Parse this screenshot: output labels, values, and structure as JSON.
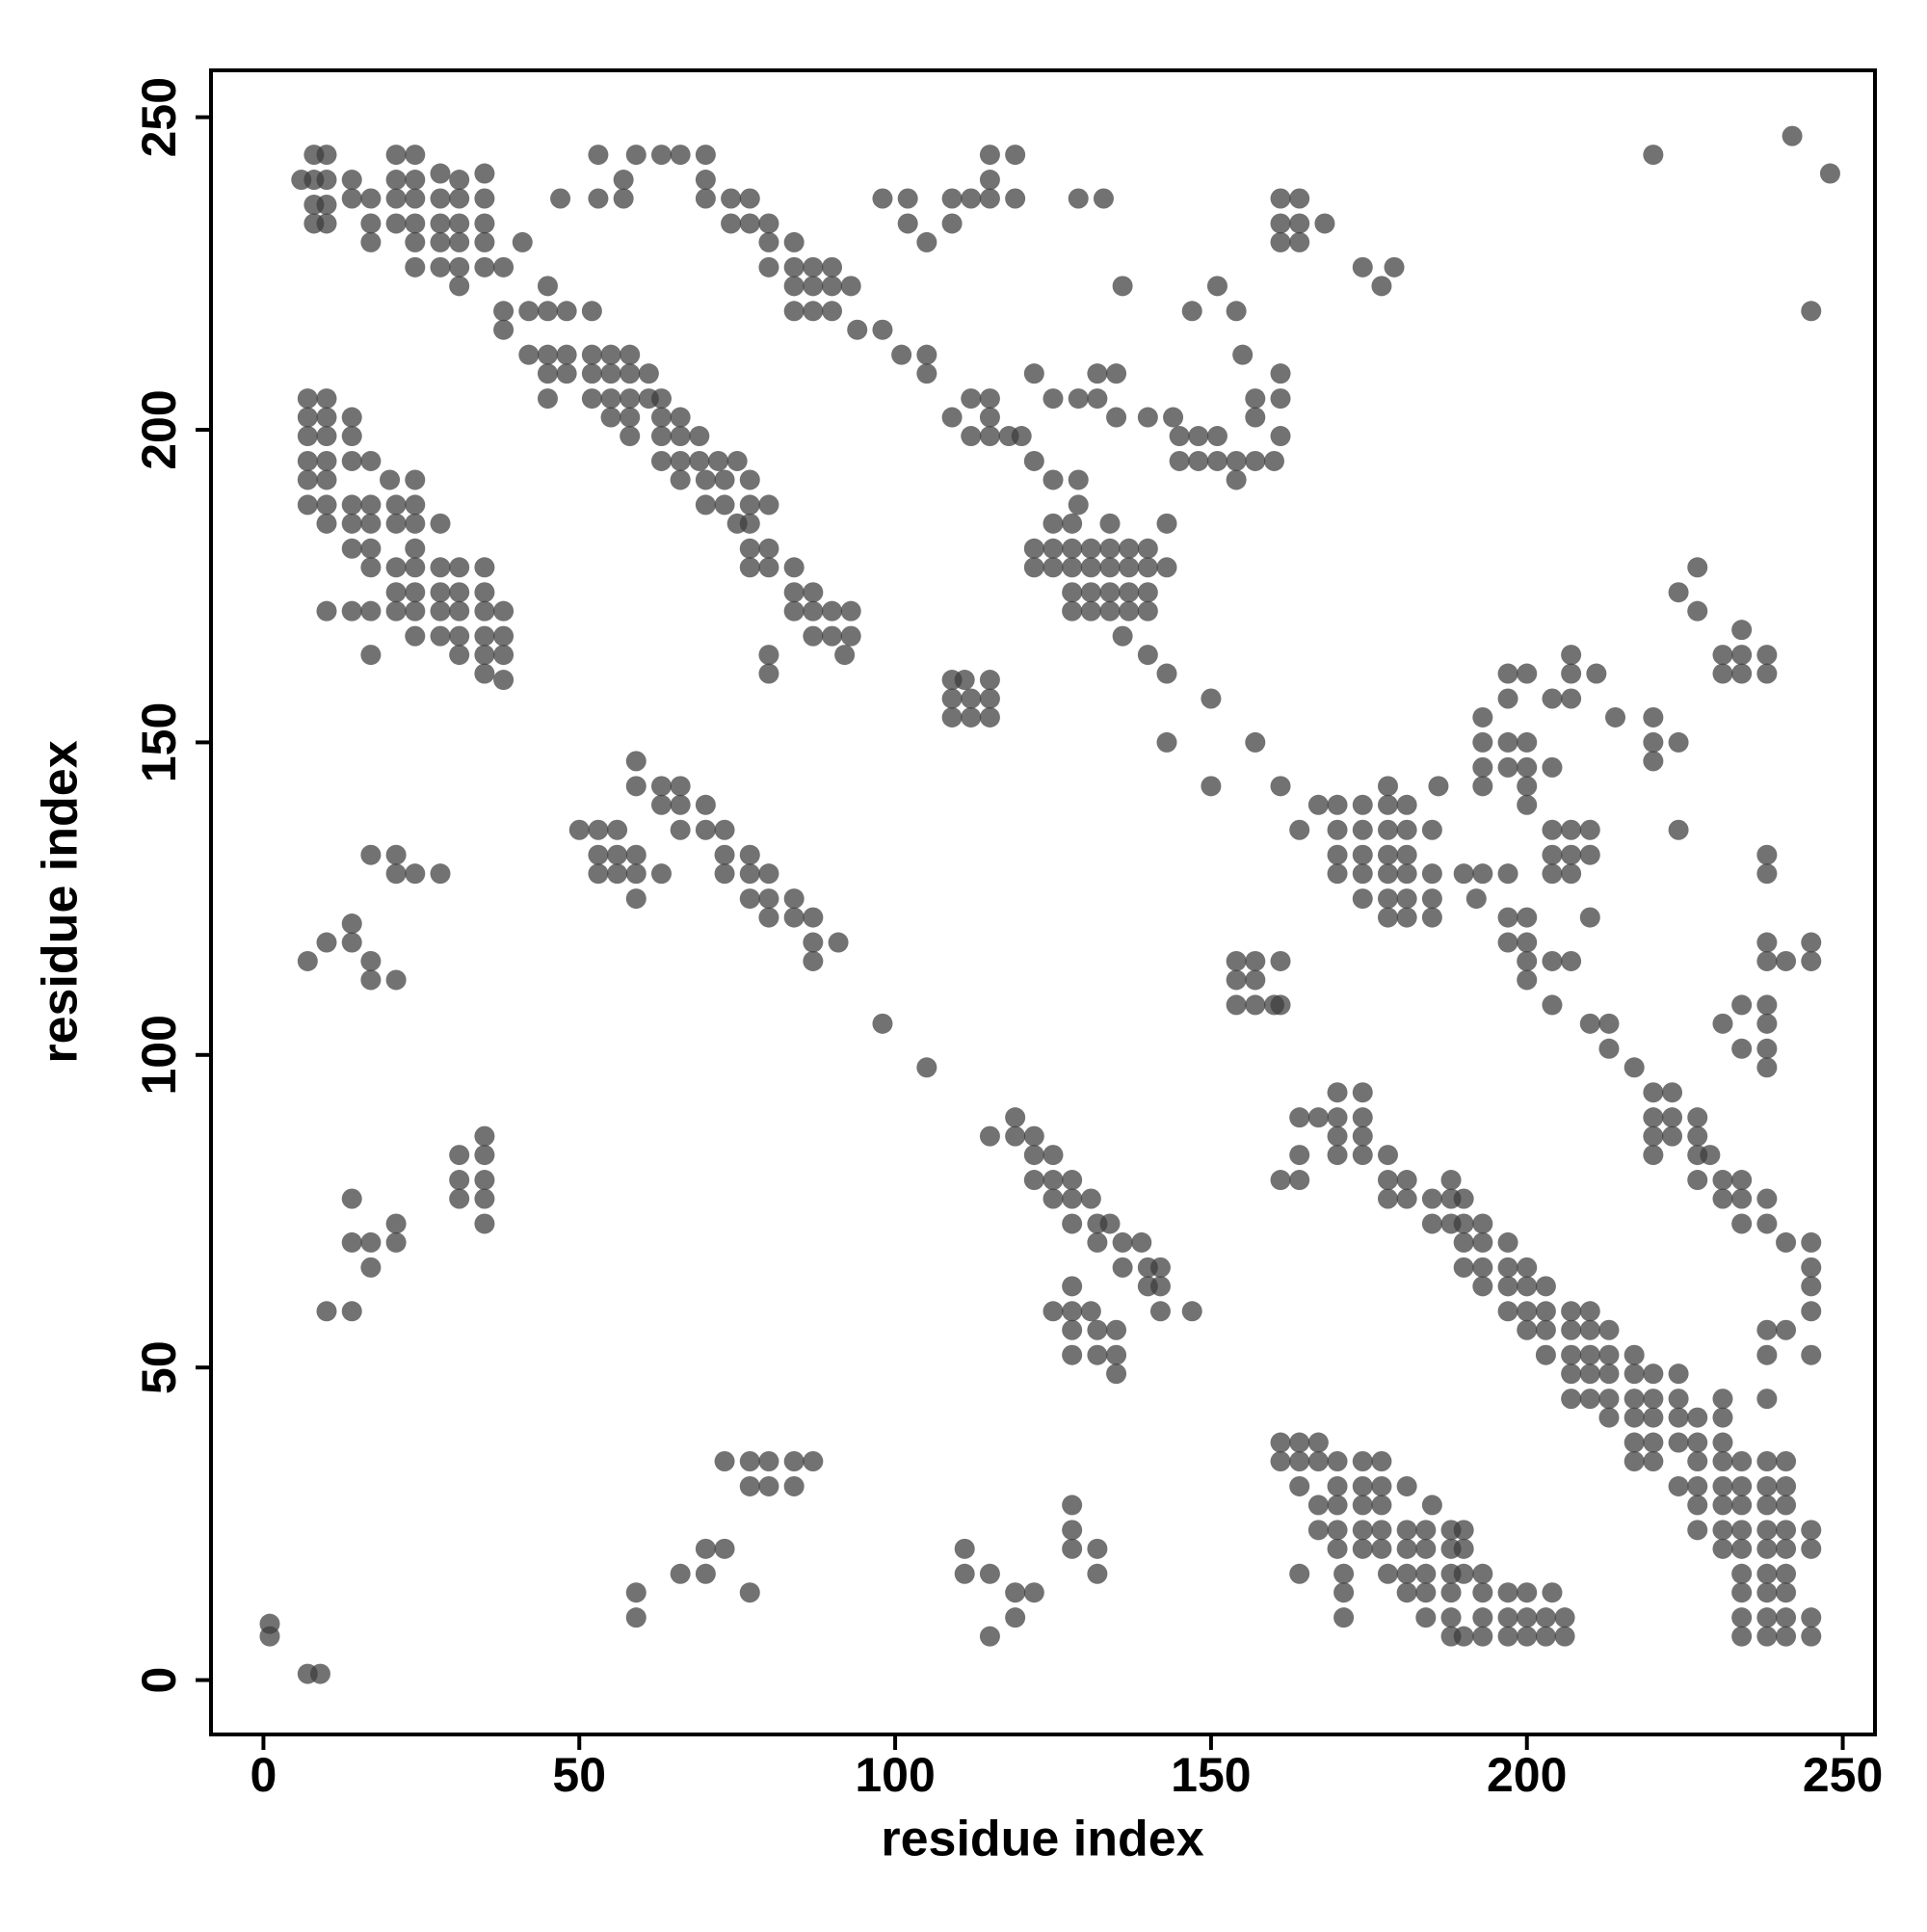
{
  "chart_data": {
    "type": "scatter",
    "x_label": "residue index",
    "y_label": "residue index",
    "xlim": [
      -8.3,
      255.1
    ],
    "ylim": [
      -8.7,
      257.5
    ],
    "xticks": [
      0,
      50,
      100,
      150,
      200,
      250
    ],
    "yticks": [
      0,
      50,
      100,
      150,
      200,
      250
    ],
    "color": "#3c3c3c",
    "marker_alpha": 0.72,
    "x": [
      6,
      8,
      10,
      8,
      10,
      8,
      10,
      8,
      10,
      14,
      14,
      17,
      17,
      17,
      21,
      24,
      21,
      24,
      21,
      24,
      21,
      24,
      24,
      28,
      31,
      28,
      31,
      35,
      35,
      28,
      31,
      35,
      28,
      31,
      35,
      24,
      28,
      31,
      35,
      38,
      31,
      41,
      38,
      38,
      42,
      45,
      45,
      48,
      52,
      42,
      45,
      48,
      52,
      55,
      58,
      45,
      48,
      52,
      55,
      58,
      61,
      45,
      52,
      55,
      58,
      61,
      63,
      55,
      58,
      63,
      66,
      58,
      63,
      66,
      69,
      63,
      66,
      69,
      72,
      75,
      66,
      70,
      73,
      77,
      70,
      73,
      77,
      80,
      75,
      77,
      77,
      80,
      77,
      80,
      84,
      84,
      87,
      84,
      87,
      90,
      93,
      87,
      90,
      93,
      80,
      92,
      80,
      53,
      59,
      63,
      66,
      70,
      53,
      57,
      57,
      70,
      70,
      74,
      77,
      74,
      77,
      80,
      80,
      84,
      80,
      84,
      87,
      90,
      84,
      87,
      90,
      93,
      84,
      87,
      90,
      94,
      98,
      101,
      105,
      105,
      98,
      102,
      102,
      105,
      109,
      109,
      112,
      115,
      115,
      115,
      119,
      119,
      47,
      7,
      10,
      7,
      10,
      14,
      7,
      10,
      14,
      7,
      10,
      14,
      17,
      7,
      10,
      7,
      10,
      14,
      17,
      10,
      14,
      17,
      14,
      17,
      20,
      24,
      21,
      24,
      21,
      24,
      28,
      24,
      17,
      21,
      24,
      28,
      31,
      35,
      21,
      24,
      28,
      31,
      35,
      21,
      24,
      28,
      31,
      35,
      38,
      24,
      28,
      31,
      35,
      38,
      31,
      35,
      38,
      35,
      38,
      10,
      14,
      17,
      17,
      122,
      122,
      125,
      128,
      131,
      134,
      137,
      140,
      143,
      125,
      128,
      125,
      128,
      131,
      134,
      137,
      140,
      128,
      131,
      134,
      137,
      140,
      128,
      131,
      134,
      137,
      140,
      134,
      143,
      136,
      140,
      143,
      125,
      129,
      129,
      118,
      120,
      122,
      115,
      112,
      109,
      112,
      115,
      115,
      122,
      125,
      129,
      132,
      132,
      135,
      135,
      140,
      144,
      145,
      148,
      151,
      145,
      148,
      151,
      154,
      157,
      160,
      154,
      157,
      157,
      161,
      161,
      161,
      155,
      147,
      151,
      154,
      136,
      129,
      133,
      161,
      164,
      161,
      164,
      168,
      161,
      164,
      174,
      179,
      177,
      143,
      150,
      157,
      150,
      109,
      111,
      109,
      112,
      115,
      109,
      112,
      115,
      115,
      7,
      10,
      14,
      14,
      17,
      17,
      21,
      17,
      21,
      21,
      24,
      28,
      31,
      31,
      31,
      35,
      35,
      35,
      35,
      35,
      14,
      14,
      17,
      17,
      21,
      21,
      10,
      14,
      1,
      1,
      7,
      9,
      59,
      59,
      63,
      66,
      63,
      66,
      70,
      66,
      70,
      73,
      50,
      53,
      56,
      53,
      56,
      59,
      73,
      77,
      53,
      56,
      59,
      59,
      63,
      73,
      77,
      80,
      77,
      80,
      84,
      80,
      84,
      87,
      87,
      91,
      87,
      98,
      105,
      73,
      77,
      80,
      84,
      87,
      77,
      80,
      84,
      70,
      73,
      70,
      66,
      77,
      59,
      59,
      115,
      119,
      119,
      122,
      122,
      125,
      122,
      125,
      128,
      125,
      128,
      131,
      128,
      132,
      134,
      132,
      136,
      139,
      136,
      140,
      142,
      140,
      142,
      142,
      147,
      125,
      128,
      131,
      128,
      132,
      135,
      128,
      132,
      135,
      135,
      128,
      128,
      128,
      128,
      132,
      132,
      111,
      111,
      115,
      115,
      119,
      122,
      119,
      154,
      154,
      157,
      161,
      154,
      157,
      160,
      161,
      157,
      167,
      170,
      174,
      178,
      181,
      164,
      170,
      174,
      178,
      181,
      185,
      170,
      174,
      178,
      181,
      170,
      174,
      178,
      181,
      185,
      174,
      178,
      181,
      185,
      178,
      181,
      185,
      178,
      186,
      161,
      190,
      193,
      197,
      192,
      197,
      200,
      200,
      197,
      200,
      200,
      204,
      207,
      204,
      210,
      213,
      213,
      217,
      220,
      223,
      220,
      223,
      227,
      220,
      223,
      227,
      220,
      227,
      229,
      227,
      231,
      234,
      231,
      234,
      238,
      234,
      238,
      241,
      245,
      245,
      245,
      245,
      245,
      238,
      241,
      238,
      238,
      193,
      197,
      197,
      200,
      193,
      197,
      200,
      193,
      197,
      200,
      204,
      200,
      200,
      193,
      204,
      207,
      204,
      207,
      210,
      207,
      204,
      210,
      210,
      204,
      207,
      207,
      207,
      211,
      214,
      220,
      220,
      220,
      224,
      224,
      231,
      234,
      238,
      231,
      234,
      238,
      234,
      224,
      227,
      227,
      238,
      238,
      238,
      238,
      241,
      245,
      245,
      234,
      238,
      231,
      238,
      234,
      238,
      238,
      220,
      242,
      248,
      245,
      170,
      174,
      170,
      167,
      174,
      170,
      174,
      164,
      164,
      161,
      164,
      170,
      174,
      178,
      178,
      181,
      178,
      181,
      185,
      188,
      185,
      188,
      190,
      188,
      190,
      193,
      190,
      193,
      197,
      190,
      193,
      197,
      200,
      193,
      197,
      200,
      203,
      197,
      200,
      203,
      207,
      210,
      200,
      203,
      207,
      210,
      213,
      203,
      207,
      210,
      213,
      217,
      207,
      210,
      213,
      217,
      220,
      207,
      210,
      213,
      217,
      220,
      224,
      213,
      217,
      220,
      224,
      227,
      217,
      220,
      224,
      227,
      231,
      217,
      220,
      227,
      231,
      234,
      238,
      241,
      224,
      227,
      231,
      234,
      238,
      241,
      227,
      231,
      234,
      238,
      241,
      227,
      231,
      234,
      238,
      241,
      245,
      231,
      234,
      238,
      241,
      245,
      234,
      238,
      241,
      234,
      238,
      241,
      234,
      238,
      241,
      245,
      234,
      238,
      241,
      245,
      224,
      231,
      231,
      161,
      164,
      167,
      161,
      164,
      167,
      170,
      174,
      177,
      164,
      170,
      174,
      177,
      181,
      167,
      170,
      174,
      177,
      167,
      170,
      174,
      177,
      181,
      184,
      188,
      190,
      170,
      174,
      177,
      181,
      184,
      188,
      190,
      178,
      181,
      184,
      188,
      190,
      181,
      184,
      188,
      193,
      197,
      200,
      184,
      188,
      193,
      197,
      200,
      203,
      206,
      188,
      190,
      193,
      197,
      200,
      203,
      206,
      185,
      164,
      171,
      171,
      171,
      193,
      204
    ],
    "y": [
      240,
      244,
      244,
      240,
      240,
      236,
      236,
      233,
      233,
      240,
      237,
      237,
      233,
      230,
      244,
      244,
      240,
      240,
      237,
      237,
      233,
      233,
      230,
      241,
      240,
      237,
      237,
      241,
      237,
      233,
      233,
      233,
      230,
      230,
      230,
      226,
      226,
      226,
      226,
      226,
      223,
      230,
      219,
      216,
      219,
      223,
      219,
      219,
      219,
      212,
      212,
      212,
      212,
      212,
      212,
      209,
      209,
      209,
      209,
      209,
      209,
      205,
      205,
      205,
      205,
      205,
      205,
      202,
      202,
      202,
      202,
      199,
      199,
      199,
      199,
      195,
      195,
      195,
      195,
      195,
      192,
      192,
      192,
      192,
      188,
      188,
      188,
      188,
      185,
      185,
      181,
      181,
      178,
      178,
      178,
      174,
      174,
      171,
      171,
      171,
      171,
      167,
      167,
      167,
      164,
      164,
      161,
      244,
      244,
      244,
      244,
      244,
      237,
      240,
      237,
      240,
      237,
      237,
      237,
      233,
      233,
      233,
      230,
      230,
      226,
      226,
      226,
      226,
      223,
      223,
      223,
      223,
      219,
      219,
      219,
      216,
      216,
      212,
      212,
      209,
      237,
      237,
      233,
      230,
      237,
      233,
      237,
      237,
      240,
      244,
      244,
      237,
      237,
      205,
      205,
      202,
      202,
      202,
      199,
      199,
      199,
      195,
      195,
      195,
      195,
      192,
      192,
      188,
      188,
      188,
      188,
      185,
      185,
      185,
      181,
      181,
      192,
      192,
      188,
      188,
      185,
      185,
      185,
      181,
      178,
      178,
      178,
      178,
      178,
      178,
      174,
      174,
      174,
      174,
      174,
      171,
      171,
      171,
      171,
      171,
      171,
      167,
      167,
      167,
      167,
      167,
      164,
      164,
      164,
      161,
      160,
      171,
      171,
      171,
      164,
      181,
      178,
      178,
      178,
      178,
      178,
      178,
      178,
      178,
      185,
      185,
      181,
      181,
      181,
      181,
      181,
      181,
      174,
      174,
      174,
      174,
      174,
      171,
      171,
      171,
      171,
      171,
      185,
      185,
      167,
      164,
      161,
      192,
      192,
      188,
      199,
      199,
      195,
      199,
      199,
      202,
      205,
      205,
      202,
      209,
      205,
      205,
      205,
      209,
      209,
      202,
      202,
      202,
      199,
      199,
      199,
      195,
      195,
      195,
      195,
      195,
      195,
      192,
      202,
      205,
      205,
      209,
      199,
      212,
      219,
      223,
      219,
      223,
      237,
      237,
      237,
      237,
      233,
      233,
      233,
      230,
      230,
      226,
      226,
      223,
      150,
      157,
      150,
      143,
      160,
      160,
      157,
      157,
      157,
      154,
      154,
      154,
      160,
      115,
      118,
      118,
      121,
      115,
      112,
      112,
      132,
      132,
      129,
      129,
      129,
      84,
      80,
      77,
      87,
      84,
      80,
      77,
      73,
      77,
      70,
      70,
      66,
      73,
      70,
      59,
      59,
      9,
      7,
      1,
      1,
      147,
      143,
      143,
      143,
      140,
      140,
      140,
      136,
      136,
      136,
      136,
      136,
      136,
      132,
      132,
      132,
      132,
      132,
      129,
      129,
      129,
      125,
      129,
      129,
      129,
      129,
      125,
      125,
      125,
      122,
      122,
      122,
      118,
      118,
      115,
      105,
      98,
      35,
      35,
      35,
      35,
      35,
      31,
      31,
      31,
      21,
      21,
      17,
      17,
      14,
      14,
      10,
      87,
      90,
      87,
      87,
      84,
      84,
      80,
      80,
      80,
      77,
      77,
      77,
      73,
      73,
      73,
      70,
      70,
      70,
      66,
      66,
      66,
      63,
      63,
      59,
      59,
      59,
      59,
      59,
      56,
      56,
      56,
      52,
      52,
      52,
      49,
      63,
      28,
      24,
      21,
      21,
      17,
      21,
      17,
      17,
      7,
      14,
      14,
      10,
      115,
      112,
      115,
      115,
      108,
      108,
      108,
      108,
      112,
      140,
      140,
      140,
      140,
      140,
      136,
      136,
      136,
      136,
      136,
      136,
      132,
      132,
      132,
      132,
      129,
      129,
      129,
      129,
      129,
      125,
      125,
      125,
      125,
      122,
      122,
      122,
      143,
      143,
      143,
      129,
      129,
      129,
      125,
      122,
      122,
      118,
      118,
      115,
      112,
      115,
      115,
      108,
      105,
      105,
      101,
      98,
      94,
      94,
      90,
      90,
      90,
      87,
      87,
      87,
      84,
      84,
      84,
      80,
      80,
      80,
      77,
      77,
      77,
      73,
      73,
      70,
      70,
      66,
      63,
      59,
      52,
      56,
      56,
      52,
      45,
      154,
      157,
      161,
      161,
      150,
      150,
      150,
      146,
      146,
      146,
      146,
      143,
      140,
      143,
      136,
      136,
      132,
      132,
      132,
      129,
      129,
      136,
      122,
      157,
      157,
      161,
      164,
      161,
      154,
      154,
      150,
      147,
      150,
      136,
      164,
      164,
      164,
      161,
      161,
      161,
      168,
      174,
      178,
      171,
      132,
      129,
      118,
      115,
      115,
      118,
      115,
      108,
      108,
      105,
      105,
      101,
      101,
      98,
      244,
      247,
      241,
      219,
      94,
      94,
      90,
      90,
      90,
      87,
      87,
      90,
      84,
      80,
      80,
      84,
      84,
      84,
      80,
      80,
      77,
      77,
      77,
      80,
      73,
      77,
      77,
      73,
      73,
      73,
      70,
      70,
      70,
      66,
      66,
      66,
      66,
      63,
      63,
      63,
      63,
      59,
      59,
      59,
      59,
      59,
      56,
      56,
      56,
      56,
      56,
      52,
      52,
      52,
      52,
      52,
      49,
      49,
      49,
      49,
      49,
      45,
      45,
      45,
      45,
      45,
      45,
      42,
      42,
      42,
      42,
      42,
      38,
      38,
      38,
      38,
      38,
      35,
      35,
      35,
      35,
      35,
      35,
      35,
      31,
      31,
      31,
      31,
      31,
      31,
      28,
      28,
      28,
      28,
      28,
      24,
      24,
      24,
      24,
      24,
      24,
      21,
      21,
      21,
      21,
      21,
      17,
      17,
      17,
      14,
      14,
      14,
      10,
      10,
      10,
      10,
      7,
      7,
      7,
      7,
      49,
      45,
      42,
      38,
      38,
      38,
      35,
      35,
      35,
      35,
      35,
      35,
      31,
      31,
      31,
      31,
      31,
      28,
      28,
      28,
      28,
      24,
      24,
      24,
      24,
      24,
      24,
      24,
      24,
      21,
      21,
      21,
      21,
      21,
      21,
      21,
      17,
      17,
      17,
      17,
      17,
      14,
      14,
      14,
      14,
      14,
      14,
      10,
      10,
      10,
      10,
      10,
      10,
      10,
      7,
      7,
      7,
      7,
      7,
      7,
      7,
      28,
      17,
      17,
      14,
      10,
      17,
      14
    ]
  }
}
